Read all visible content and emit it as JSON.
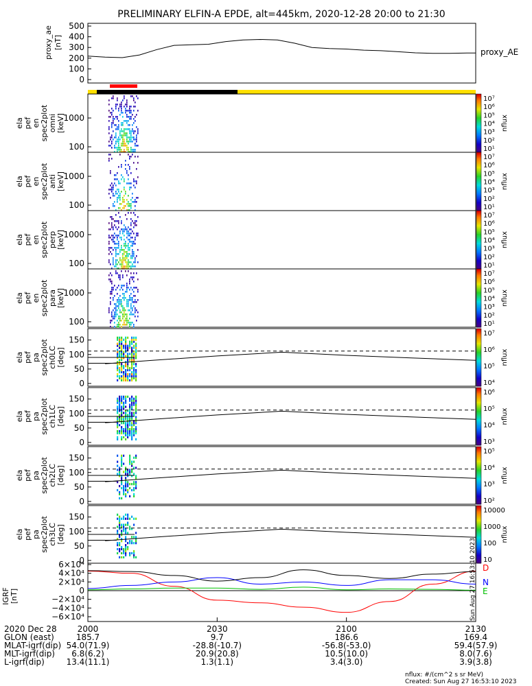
{
  "header": {
    "title": "PRELIMINARY ELFIN-A EPDE, alt=445km, 2020-12-28 20:00 to 21:30"
  },
  "colors": {
    "bar_black": "#000000",
    "bar_yellow": "#ffe000",
    "bar_red": "#ff0000",
    "igrf_black": "#000000",
    "igrf_blue": "#0000ff",
    "igrf_red": "#ff0000",
    "igrf_green": "#00c000"
  },
  "panels": {
    "ae": {
      "ylabel_lines": [
        "proxy_ae",
        "[nT]"
      ],
      "right_label": "proxy_AE",
      "yticks": [
        "500",
        "400",
        "300",
        "200",
        "100",
        "0"
      ]
    },
    "spec": [
      {
        "ylabel_lines": [
          "ela",
          "pef",
          "en",
          "spec2plot",
          "omni",
          "[keV]"
        ],
        "yticks": [
          "1000",
          "100"
        ],
        "cbar_ticks": [
          "10⁷",
          "10⁶",
          "10⁵",
          "10⁴",
          "10³",
          "10²",
          "10¹"
        ],
        "cbar_label": "nflux"
      },
      {
        "ylabel_lines": [
          "ela",
          "pef",
          "en",
          "spec2plot",
          "anti",
          "[keV]"
        ],
        "yticks": [
          "1000",
          "100"
        ],
        "cbar_ticks": [
          "10⁷",
          "10⁶",
          "10⁵",
          "10⁴",
          "10³",
          "10²",
          "10¹"
        ],
        "cbar_label": "nflux"
      },
      {
        "ylabel_lines": [
          "ela",
          "pef",
          "en",
          "spec2plot",
          "perp",
          "[keV]"
        ],
        "yticks": [
          "1000",
          "100"
        ],
        "cbar_ticks": [
          "10⁷",
          "10⁶",
          "10⁵",
          "10⁴",
          "10³",
          "10²",
          "10¹"
        ],
        "cbar_label": "nflux"
      },
      {
        "ylabel_lines": [
          "ela",
          "pef",
          "en",
          "spec2plot",
          "para",
          "[keV]"
        ],
        "yticks": [
          "1000",
          "100"
        ],
        "cbar_ticks": [
          "10⁷",
          "10⁶",
          "10⁵",
          "10⁴",
          "10³",
          "10²",
          "10¹"
        ],
        "cbar_label": "nflux"
      }
    ],
    "pa": [
      {
        "ylabel_lines": [
          "ela",
          "pef",
          "pa",
          "spec2plot",
          "ch0LC",
          "[deg]"
        ],
        "yticks": [
          "150",
          "100",
          "50",
          "0"
        ],
        "cbar_ticks": [
          "10⁷",
          "10⁶",
          "10⁵",
          "10⁴"
        ],
        "cbar_label": "nflux"
      },
      {
        "ylabel_lines": [
          "ela",
          "pef",
          "pa",
          "spec2plot",
          "ch1LC",
          "[deg]"
        ],
        "yticks": [
          "150",
          "100",
          "50",
          "0"
        ],
        "cbar_ticks": [
          "10⁶",
          "10⁵",
          "10⁴",
          "10³"
        ],
        "cbar_label": "nflux"
      },
      {
        "ylabel_lines": [
          "ela",
          "pef",
          "pa",
          "spec2plot",
          "ch2LC",
          "[deg]"
        ],
        "yticks": [
          "150",
          "100",
          "50",
          "0"
        ],
        "cbar_ticks": [
          "10⁵",
          "10⁴",
          "10³",
          "10²"
        ],
        "cbar_label": "nflux"
      },
      {
        "ylabel_lines": [
          "ela",
          "pef",
          "pa",
          "spec2plot",
          "ch3LC",
          "[deg]"
        ],
        "yticks": [
          "150",
          "100",
          "50",
          "0"
        ],
        "cbar_ticks": [
          "10000",
          "1000",
          "100",
          "10"
        ],
        "cbar_label": "nflux"
      }
    ],
    "igrf": {
      "ylabel_lines": [
        "IGRF",
        "[nT]"
      ],
      "yticks": [
        "6×10⁴",
        "4×10⁴",
        "2×10⁴",
        "0",
        "−2×10⁴",
        "−4×10⁴",
        "−6×10⁴"
      ],
      "legend": [
        "D",
        "N",
        "E"
      ],
      "stamp": "Sun Aug 27 16:53:10 2023"
    }
  },
  "footer": {
    "rows": [
      {
        "label": "2020 Dec 28",
        "values": [
          "2000",
          "2030",
          "2100",
          "2130"
        ]
      },
      {
        "label": "GLON (east)",
        "values": [
          "185.7",
          "9.7",
          "186.6",
          "169.4"
        ]
      },
      {
        "label": "MLAT-igrf(dip)",
        "values": [
          "54.0(71.9)",
          "-28.8(-10.7)",
          "-56.8(-53.0)",
          "59.4(57.9)"
        ]
      },
      {
        "label": "MLT-igrf(dip)",
        "values": [
          "6.8(6.2)",
          "20.9(20.8)",
          "10.5(10.0)",
          "8.0(7.6)"
        ]
      },
      {
        "label": "L-igrf(dip)",
        "values": [
          "13.4(11.1)",
          "1.3(1.1)",
          "3.4(3.0)",
          "3.9(3.8)"
        ]
      }
    ],
    "units_note": "nflux: #/(cm^2 s sr MeV)",
    "created": "Created: Sun Aug 27 16:53:10 2023"
  },
  "chart_data": [
    {
      "type": "line",
      "name": "proxy_ae",
      "x": [
        0,
        4,
        8,
        12,
        16,
        20,
        24,
        28,
        32,
        36,
        40,
        44,
        48,
        52,
        56,
        60,
        64,
        68,
        72,
        76,
        80,
        84,
        88,
        90
      ],
      "y": [
        220,
        210,
        205,
        230,
        280,
        320,
        325,
        330,
        355,
        370,
        375,
        370,
        340,
        300,
        290,
        285,
        275,
        270,
        260,
        250,
        245,
        245,
        248,
        248
      ],
      "ylim": [
        0,
        500
      ],
      "xlim": [
        0,
        90
      ]
    },
    {
      "type": "line",
      "name": "loss-cone",
      "x": [
        4,
        15,
        30,
        45,
        60,
        75,
        90
      ],
      "solid": [
        68,
        80,
        95,
        108,
        97,
        88,
        80
      ],
      "dashed_deg": 112,
      "ref_deg": 90,
      "ylim": [
        0,
        180
      ],
      "xlim": [
        0,
        90
      ]
    },
    {
      "type": "line",
      "name": "IGRF",
      "x": [
        0,
        10,
        20,
        30,
        40,
        50,
        60,
        70,
        80,
        90
      ],
      "series": [
        {
          "name": "D",
          "values": [
            45000,
            40000,
            10000,
            -22000,
            -28000,
            -38000,
            -50000,
            -25000,
            15000,
            45000
          ]
        },
        {
          "name": "N",
          "values": [
            5000,
            12000,
            20000,
            30000,
            15000,
            20000,
            12000,
            25000,
            25000,
            15000
          ]
        },
        {
          "name": "E",
          "values": [
            2000,
            4000,
            6000,
            6000,
            3000,
            8000,
            2000,
            4000,
            3000,
            1000
          ]
        },
        {
          "name": "F",
          "values": [
            46000,
            44000,
            35000,
            22000,
            30000,
            48000,
            35000,
            28000,
            38000,
            44000
          ]
        }
      ],
      "ylim": [
        -60000,
        60000
      ],
      "xlim": [
        0,
        90
      ]
    }
  ]
}
